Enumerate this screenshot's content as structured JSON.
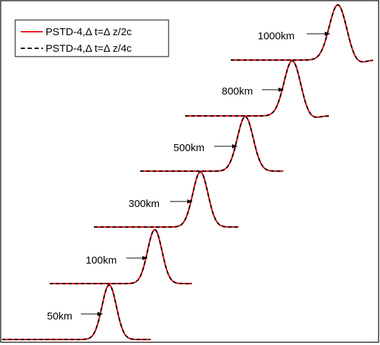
{
  "chart_data": {
    "type": "line",
    "title": "",
    "xlabel": "",
    "ylabel": "",
    "grid": false,
    "legend_position": "top-left",
    "series": [
      {
        "name": "PSTD-4,Δ t=Δ z/2c",
        "color": "#e8141b",
        "style": "solid"
      },
      {
        "name": "PSTD-4,Δ t=Δ z/4c",
        "color": "#000000",
        "style": "dashed"
      }
    ],
    "traces": [
      {
        "label": "50km"
      },
      {
        "label": "100km"
      },
      {
        "label": "300km"
      },
      {
        "label": "500km"
      },
      {
        "label": "800km"
      },
      {
        "label": "1000km"
      }
    ]
  }
}
